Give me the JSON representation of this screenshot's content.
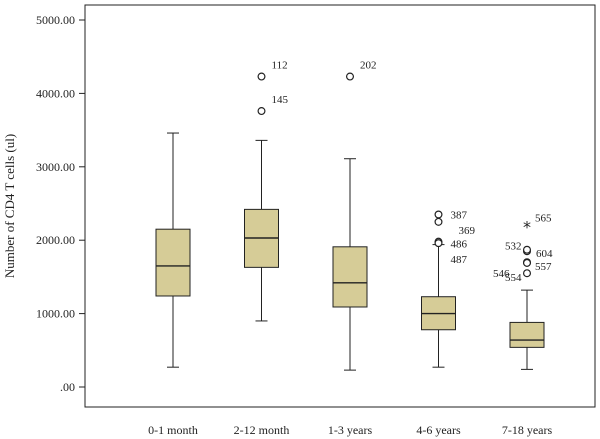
{
  "chart_data": {
    "type": "box",
    "ylabel": "Number of CD4 T cells (ul)",
    "ylim": [
      -300,
      5200
    ],
    "yticks": [
      0,
      1000,
      2000,
      3000,
      4000,
      5000
    ],
    "ytick_labels": [
      ".00",
      "1000.00",
      "2000.00",
      "3000.00",
      "4000.00",
      "5000.00"
    ],
    "grid": false,
    "colors": {
      "box_fill": "#d6cc97",
      "line": "#222222"
    },
    "categories": [
      "0-1 month",
      "2-12 month",
      "1-3 years",
      "4-6 years",
      "7-18 years"
    ],
    "boxes": [
      {
        "category": "0-1 month",
        "whisker_low": 270,
        "q1": 1240,
        "median": 1650,
        "q3": 2150,
        "whisker_high": 3460,
        "outliers": []
      },
      {
        "category": "2-12 month",
        "whisker_low": 900,
        "q1": 1630,
        "median": 2030,
        "q3": 2420,
        "whisker_high": 3360,
        "outliers": [
          {
            "value": 4230,
            "label": "112",
            "marker": "circle"
          },
          {
            "value": 3760,
            "label": "145",
            "marker": "circle"
          }
        ]
      },
      {
        "category": "1-3 years",
        "whisker_low": 230,
        "q1": 1090,
        "median": 1420,
        "q3": 1910,
        "whisker_high": 3110,
        "outliers": [
          {
            "value": 4230,
            "label": "202",
            "marker": "circle"
          }
        ]
      },
      {
        "category": "4-6 years",
        "whisker_low": 270,
        "q1": 780,
        "median": 1000,
        "q3": 1230,
        "whisker_high": 1940,
        "outliers": [
          {
            "value": 2350,
            "label": "387",
            "marker": "circle"
          },
          {
            "value": 2250,
            "label": "369",
            "marker": "circle"
          },
          {
            "value": 1980,
            "label": "486",
            "marker": "circle"
          },
          {
            "value": 1960,
            "label": "487",
            "marker": "circle"
          }
        ]
      },
      {
        "category": "7-18 years",
        "whisker_low": 240,
        "q1": 540,
        "median": 640,
        "q3": 880,
        "whisker_high": 1320,
        "outliers": [
          {
            "value": 2200,
            "label": "565",
            "marker": "star"
          },
          {
            "value": 1850,
            "label": "604",
            "marker": "circle"
          },
          {
            "value": 1870,
            "label": "532",
            "marker": "circle"
          },
          {
            "value": 1700,
            "label": "557",
            "marker": "circle"
          },
          {
            "value": 1690,
            "label": "546",
            "marker": "circle"
          },
          {
            "value": 1550,
            "label": "554",
            "marker": "circle"
          }
        ]
      }
    ]
  }
}
